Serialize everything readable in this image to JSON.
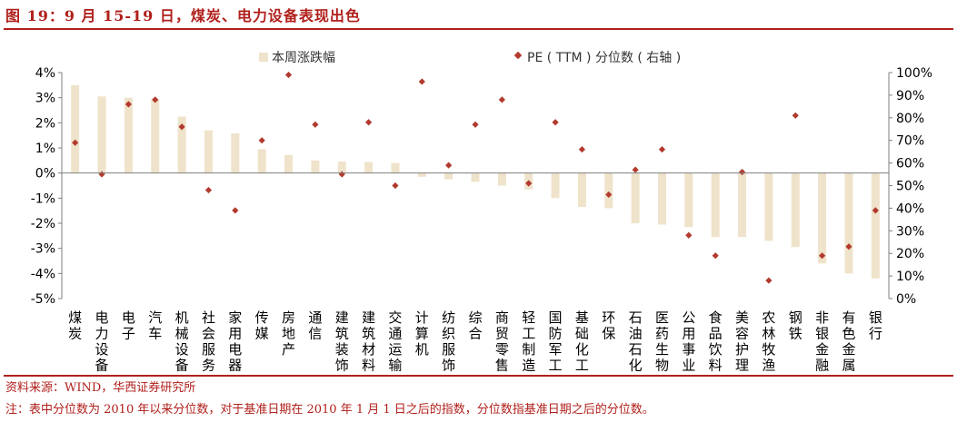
{
  "header": {
    "title": "图 19：9 月 15-19 日，煤炭、电力设备表现出色"
  },
  "footer": {
    "source": "资料来源：WIND，华西证券研究所",
    "note": "注：表中分位数为 2010 年以来分位数，对于基准日期在 2010 年 1 月 1 日之后的指数，分位数指基准日期之后的分位数。"
  },
  "colors": {
    "bar": "#efe3cb",
    "marker": "#b23a2e",
    "axis": "#7f7f7f",
    "title": "#b0201c"
  },
  "chart_data": {
    "type": "bar",
    "categories": [
      "煤炭",
      "电力设备",
      "电子",
      "汽车",
      "机械设备",
      "社会服务",
      "家用电器",
      "传媒",
      "房地产",
      "通信",
      "建筑装饰",
      "建筑材料",
      "交通运输",
      "计算机",
      "纺织服饰",
      "综合",
      "商贸零售",
      "轻工制造",
      "国防军工",
      "基础化工",
      "环保",
      "石油石化",
      "医药生物",
      "公用事业",
      "食品饮料",
      "美容护理",
      "农林牧渔",
      "钢铁",
      "非银金融",
      "有色金属",
      "银行"
    ],
    "series": [
      {
        "name": "本周涨跌幅",
        "axis": "left",
        "kind": "bar",
        "values": [
          3.5,
          3.05,
          3.0,
          2.95,
          2.25,
          1.7,
          1.58,
          0.95,
          0.72,
          0.5,
          0.46,
          0.44,
          0.4,
          -0.15,
          -0.25,
          -0.35,
          -0.5,
          -0.65,
          -1.0,
          -1.35,
          -1.4,
          -2.0,
          -2.05,
          -2.15,
          -2.55,
          -2.55,
          -2.7,
          -2.95,
          -3.6,
          -4.0,
          -4.2
        ]
      },
      {
        "name": "PE（TTM）分位数（右轴）",
        "axis": "right",
        "kind": "scatter",
        "values": [
          69,
          55,
          86,
          88,
          76,
          48,
          39,
          70,
          99,
          77,
          55,
          78,
          50,
          96,
          59,
          77,
          88,
          51,
          78,
          66,
          46,
          57,
          66,
          28,
          19,
          56,
          8,
          81,
          19,
          23,
          39
        ]
      }
    ],
    "legend": [
      {
        "label": "本周涨跌幅",
        "kind": "bar"
      },
      {
        "label": "PE ( TTM ) 分位数 ( 右轴 )",
        "kind": "marker"
      }
    ],
    "legend_position": "top-center",
    "ylim": [
      -5,
      4
    ],
    "y_ticks": [
      "-5%",
      "-4%",
      "-3%",
      "-2%",
      "-1%",
      "0%",
      "1%",
      "2%",
      "3%",
      "4%"
    ],
    "y2lim": [
      0,
      100
    ],
    "y2_ticks": [
      "0%",
      "10%",
      "20%",
      "30%",
      "40%",
      "50%",
      "60%",
      "70%",
      "80%",
      "90%",
      "100%"
    ],
    "grid": false
  }
}
